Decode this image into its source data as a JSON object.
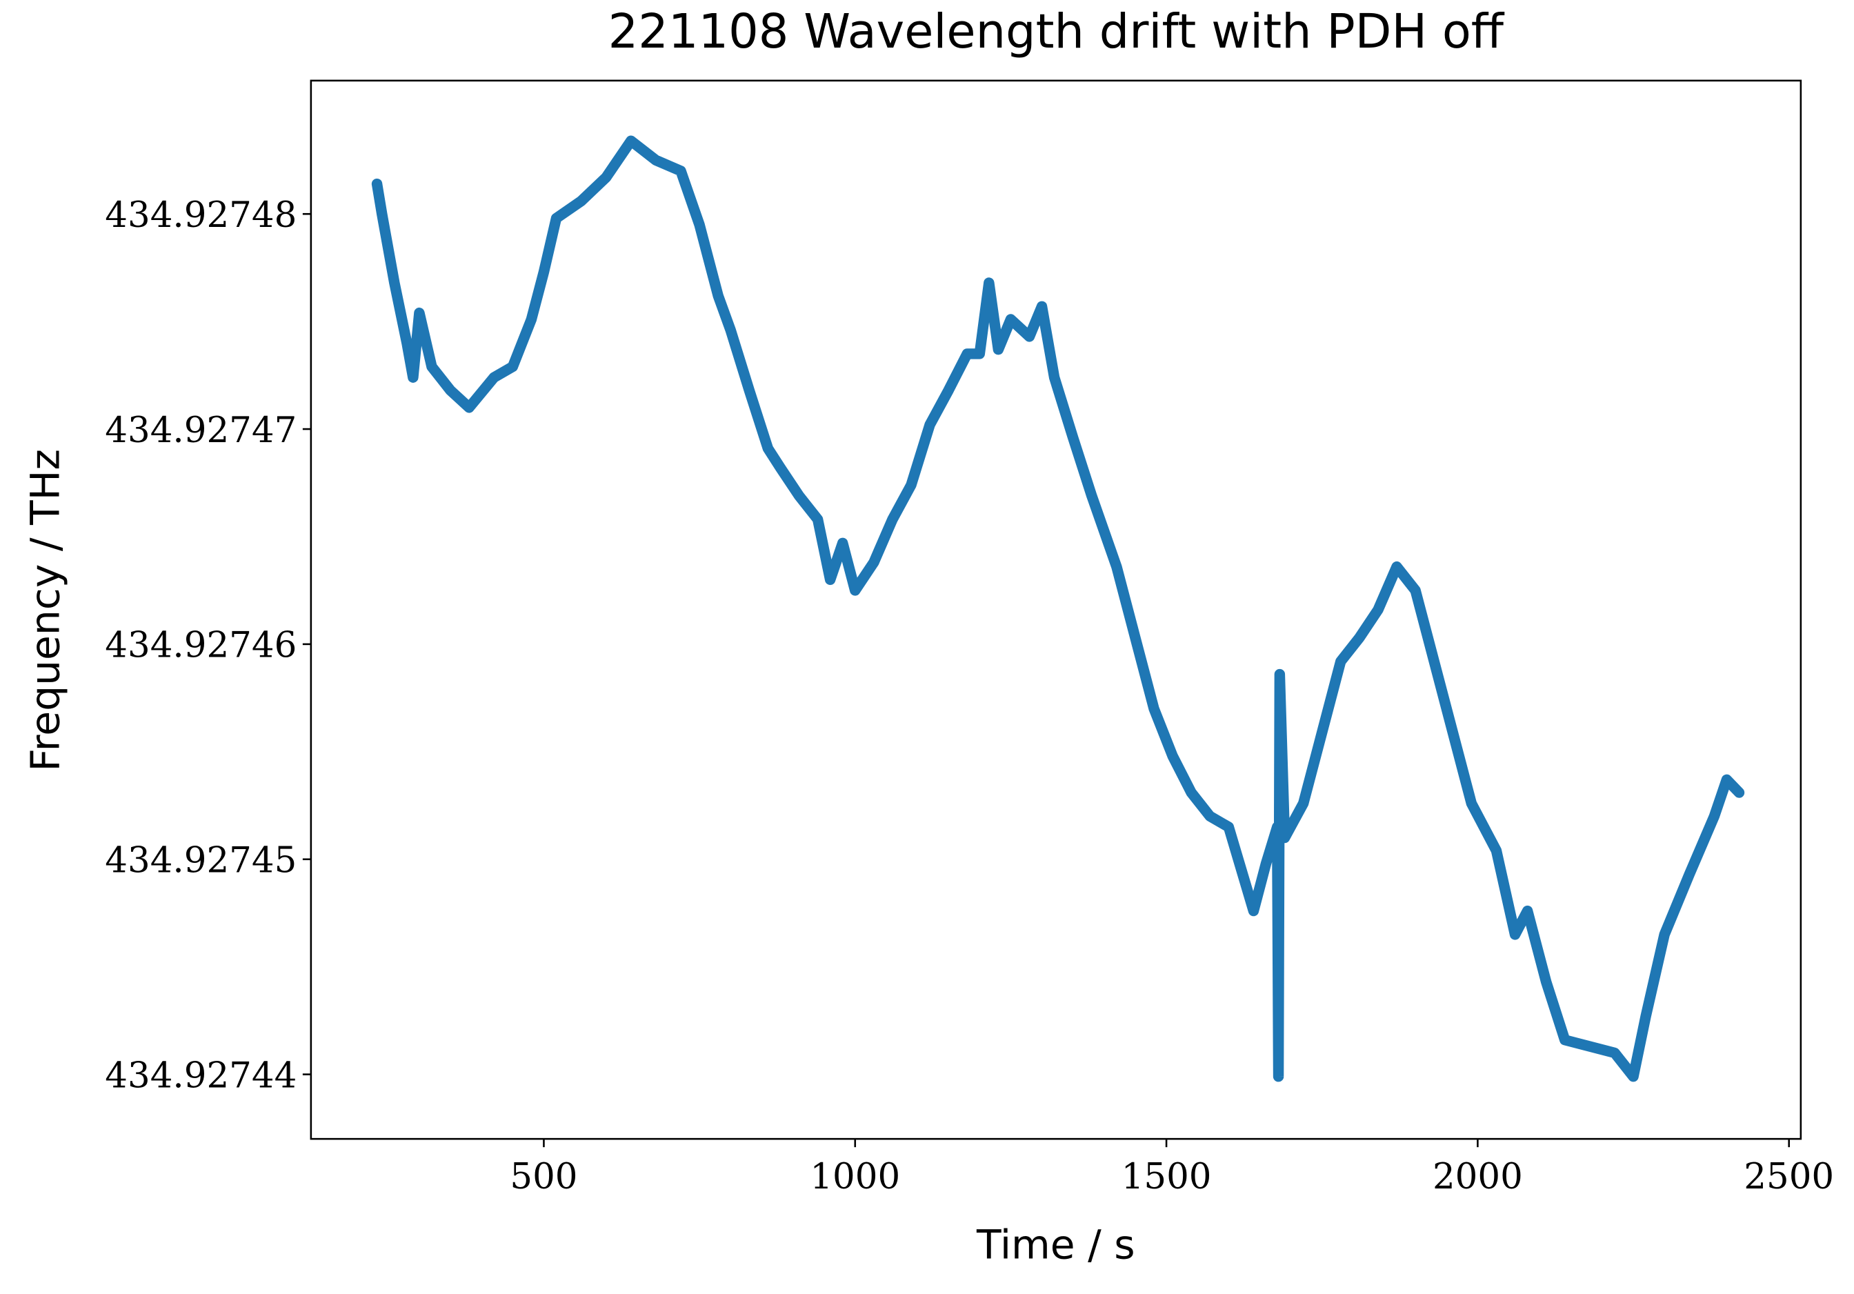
{
  "chart_data": {
    "type": "line",
    "title": "221108 Wavelength drift with PDH off",
    "x_label": "Time / s",
    "y_label": "Frequency / THz",
    "xlim": [
      126,
      2519
    ],
    "ylim": [
      434.927437,
      434.9274862
    ],
    "xticks": [
      500,
      1000,
      1500,
      2000,
      2500
    ],
    "yticks": [
      434.92744,
      434.92745,
      434.92746,
      434.92747,
      434.92748
    ],
    "series": [
      {
        "color": "#1f77b4",
        "x": [
          232,
          240,
          260,
          280,
          290,
          300,
          320,
          350,
          380,
          420,
          450,
          480,
          500,
          520,
          560,
          600,
          640,
          680,
          720,
          750,
          780,
          800,
          830,
          860,
          880,
          910,
          940,
          960,
          980,
          1000,
          1030,
          1060,
          1090,
          1120,
          1150,
          1180,
          1200,
          1215,
          1230,
          1250,
          1280,
          1300,
          1320,
          1350,
          1380,
          1420,
          1450,
          1480,
          1510,
          1540,
          1570,
          1600,
          1640,
          1660,
          1678,
          1680,
          1682,
          1690,
          1720,
          1750,
          1780,
          1810,
          1840,
          1870,
          1900,
          1930,
          1960,
          1990,
          2030,
          2060,
          2080,
          2110,
          2140,
          2180,
          2220,
          2250,
          2270,
          2300,
          2340,
          2380,
          2400,
          2420
        ],
        "values": [
          434.9274814,
          434.92748,
          434.9274768,
          434.927474,
          434.9274724,
          434.9274754,
          434.9274729,
          434.9274718,
          434.927471,
          434.9274724,
          434.9274729,
          434.9274751,
          434.9274773,
          434.9274798,
          434.9274806,
          434.9274817,
          434.9274834,
          434.9274825,
          434.927482,
          434.9274795,
          434.9274762,
          434.9274746,
          434.9274718,
          434.9274691,
          434.9274682,
          434.9274669,
          434.9274658,
          434.927463,
          434.9274647,
          434.9274625,
          434.9274638,
          434.9274658,
          434.9274674,
          434.9274702,
          434.9274718,
          434.9274735,
          434.9274735,
          434.9274768,
          434.9274737,
          434.9274751,
          434.9274743,
          434.9274757,
          434.9274724,
          434.9274696,
          434.9274669,
          434.9274636,
          434.9274603,
          434.927457,
          434.9274548,
          434.9274531,
          434.927452,
          434.9274515,
          434.9274476,
          434.9274498,
          434.9274515,
          434.9274399,
          434.9274586,
          434.927451,
          434.9274526,
          434.9274559,
          434.9274592,
          434.9274603,
          434.9274616,
          434.9274636,
          434.9274625,
          434.9274592,
          434.9274559,
          434.9274526,
          434.9274504,
          434.9274465,
          434.9274476,
          434.9274443,
          434.9274416,
          434.9274413,
          434.927441,
          434.9274399,
          434.9274427,
          434.9274465,
          434.9274493,
          434.927452,
          434.9274537,
          434.9274531
        ]
      }
    ]
  }
}
